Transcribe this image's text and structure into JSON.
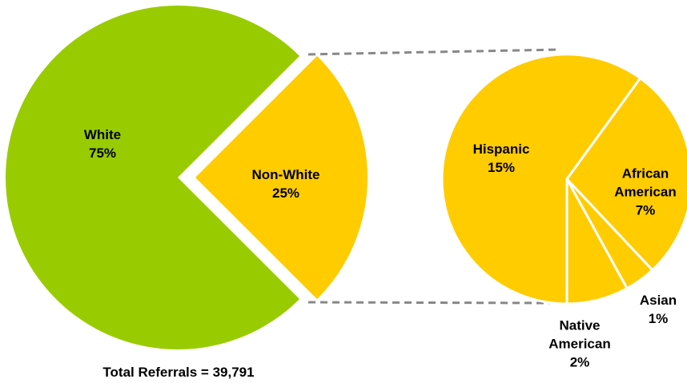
{
  "chart_data": [
    {
      "type": "pie",
      "annotation": "Total Referrals = 39,791",
      "categories": [
        "White",
        "Non-White"
      ],
      "values": [
        75,
        25
      ],
      "value_labels": [
        "75%",
        "25%"
      ],
      "colors": [
        "#99cc00",
        "#ffcc00"
      ]
    },
    {
      "type": "pie",
      "categories": [
        "Hispanic",
        "African American",
        "Asian",
        "Native American"
      ],
      "values": [
        15,
        7,
        1,
        2
      ],
      "value_labels": [
        "15%",
        "7%",
        "1%",
        "2%"
      ],
      "color": "#ffcc00"
    }
  ]
}
